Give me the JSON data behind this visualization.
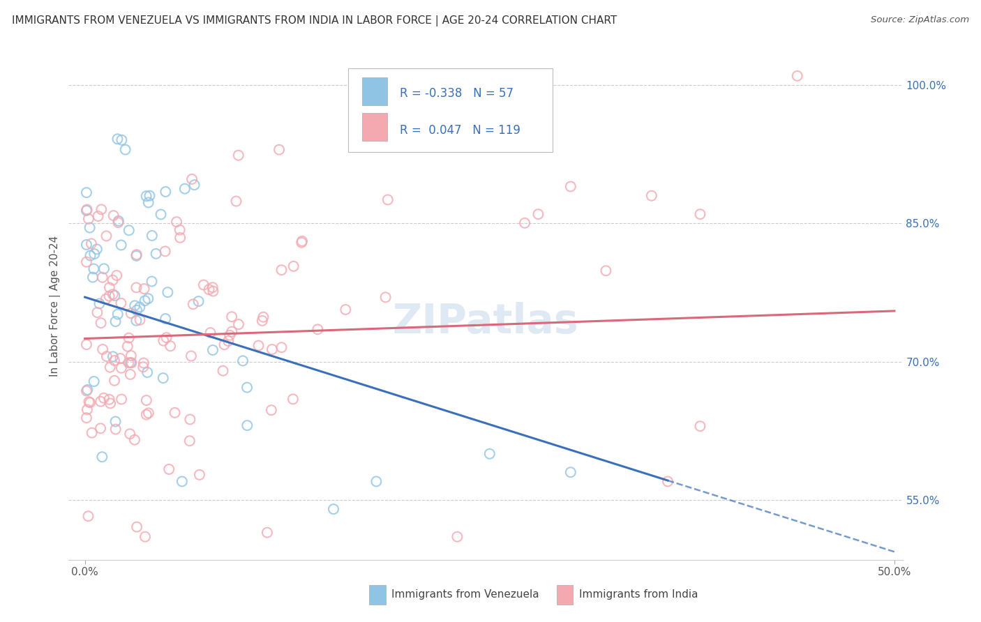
{
  "title": "IMMIGRANTS FROM VENEZUELA VS IMMIGRANTS FROM INDIA IN LABOR FORCE | AGE 20-24 CORRELATION CHART",
  "source_text": "Source: ZipAtlas.com",
  "ylabel": "In Labor Force | Age 20-24",
  "xlim": [
    0.0,
    0.5
  ],
  "ylim": [
    0.5,
    1.02
  ],
  "ytick_labels": [
    "55.0%",
    "70.0%",
    "85.0%",
    "100.0%"
  ],
  "ytick_positions": [
    0.55,
    0.7,
    0.85,
    1.0
  ],
  "legend_r_venezuela": "-0.338",
  "legend_n_venezuela": "57",
  "legend_r_india": "0.047",
  "legend_n_india": "119",
  "color_venezuela": "#90c4e4",
  "color_india": "#f4a8b0",
  "trend_venezuela_color": "#3a6fba",
  "trend_india_color": "#d9687a",
  "background_color": "#ffffff",
  "grid_color": "#cccccc",
  "watermark_text": "ZIPatlas",
  "legend_text_color": "#3a6fba",
  "ytick_color": "#3a6fba",
  "xtick_color": "#555555"
}
